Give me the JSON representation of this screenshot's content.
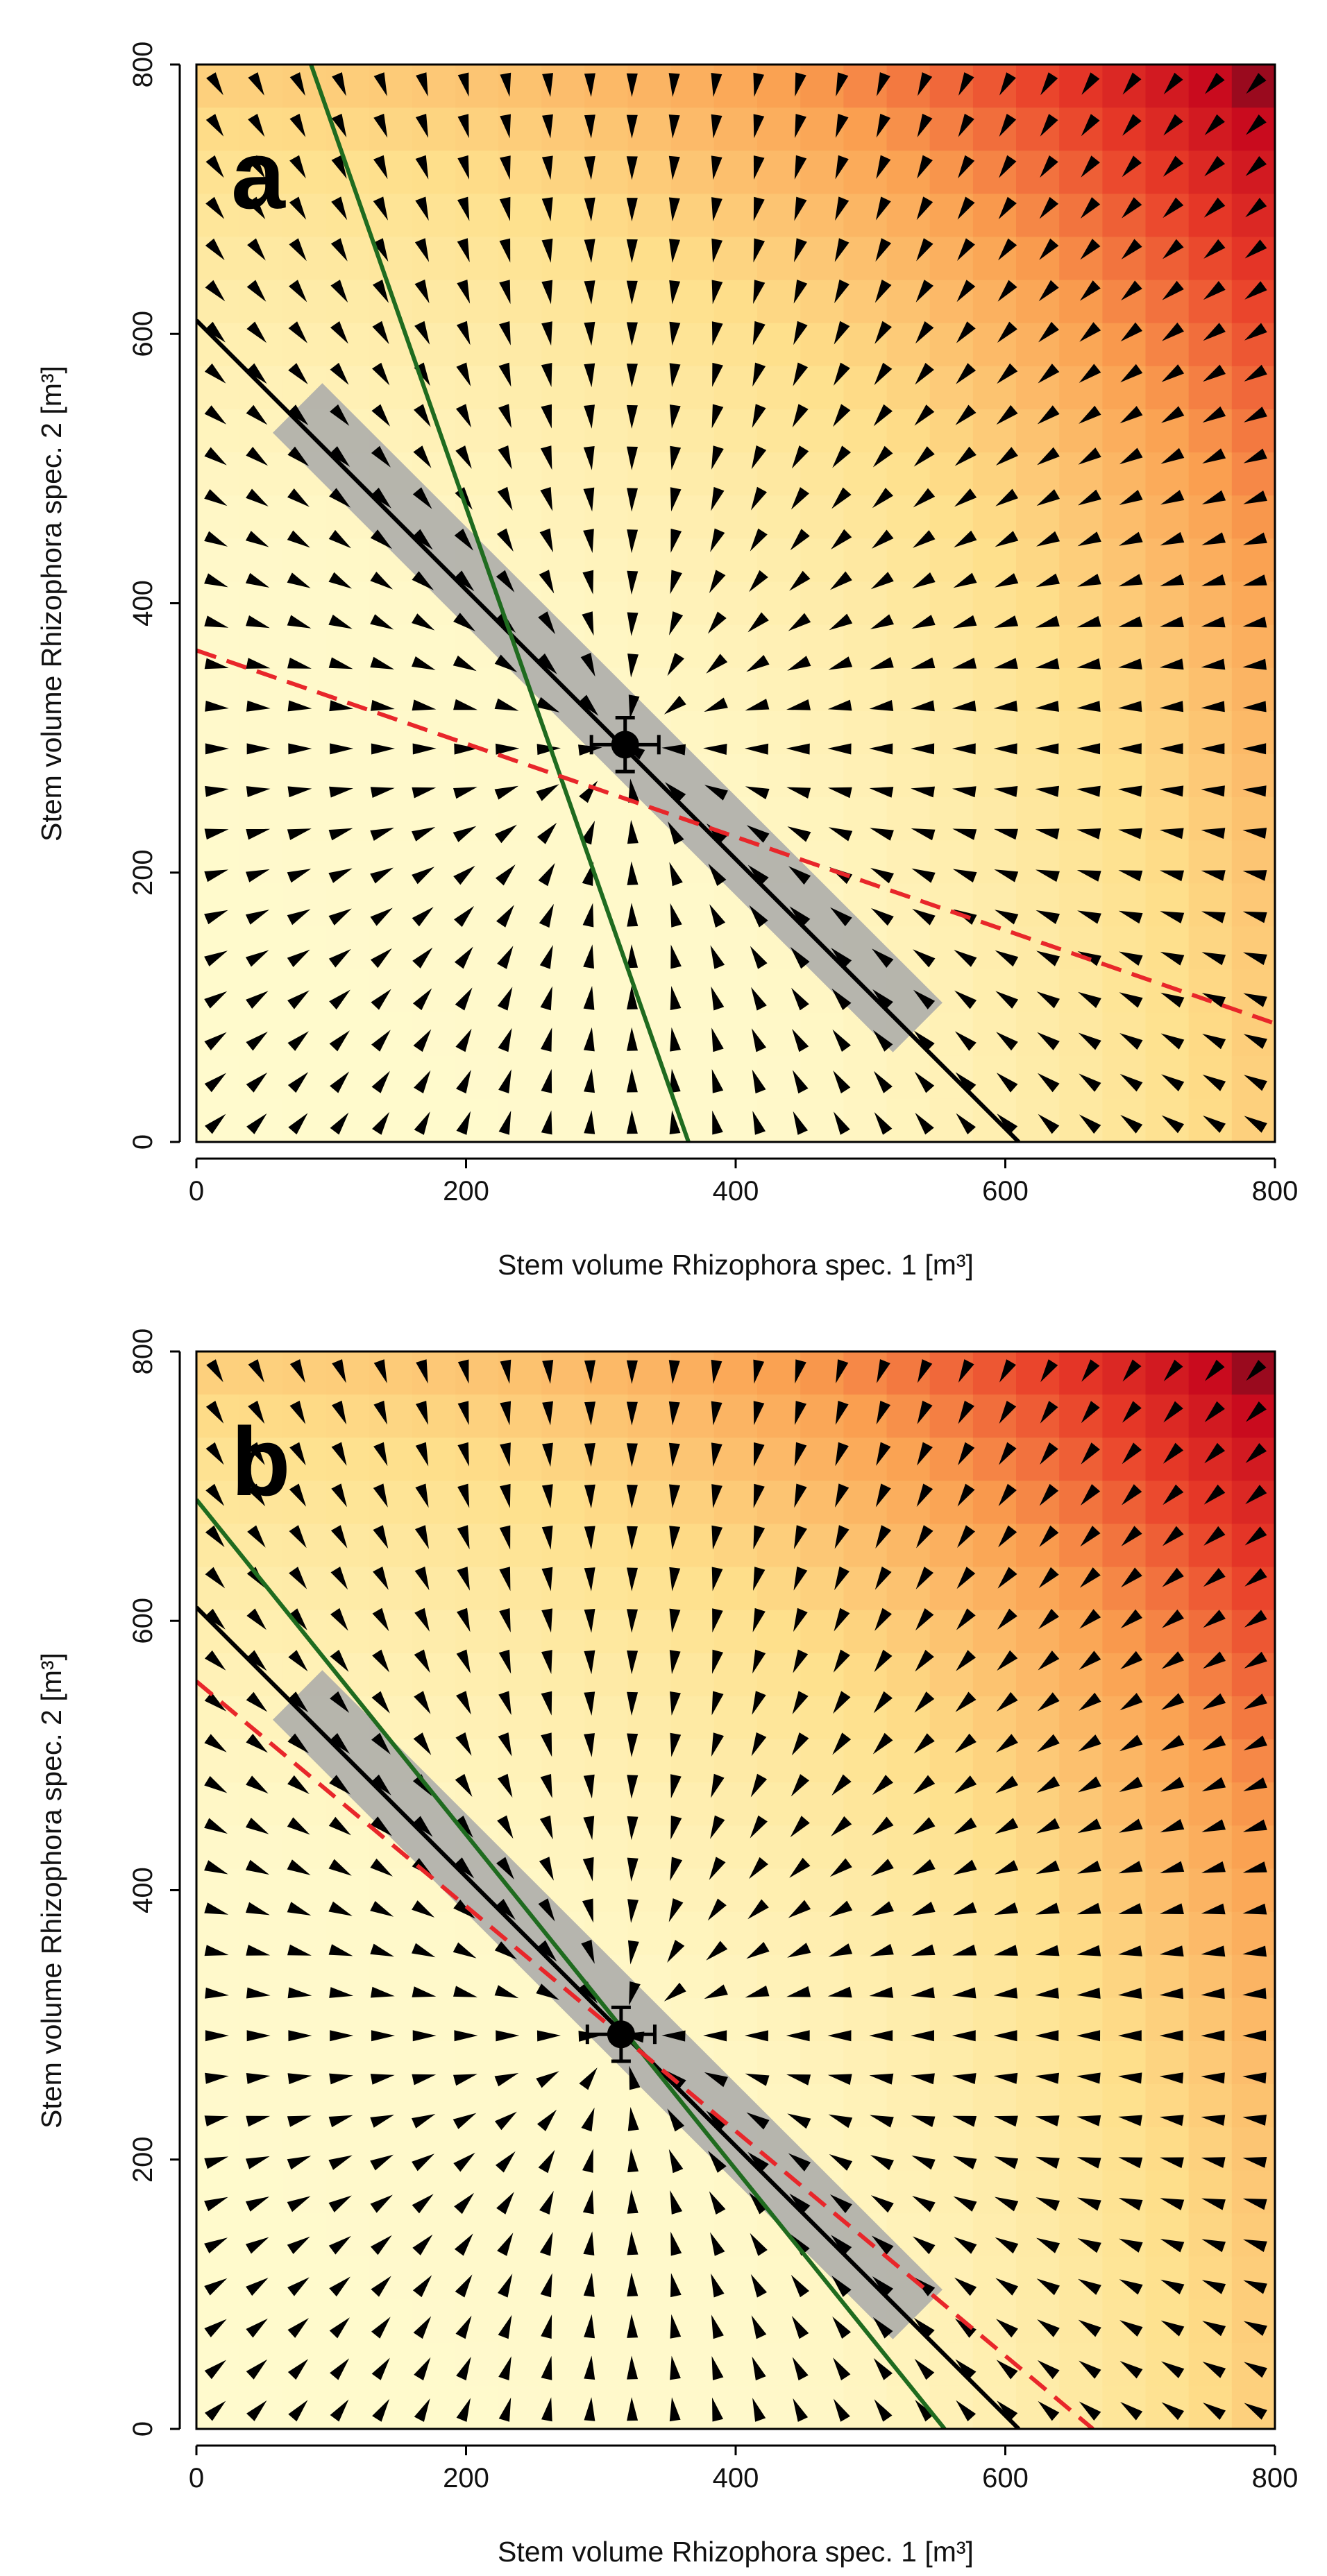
{
  "chart_data": [
    {
      "type": "vector-field",
      "panel_label": "a",
      "xlabel": "Stem volume Rhizophora spec. 1 [m³]",
      "ylabel": "Stem volume Rhizophora spec. 2 [m³]",
      "xlim": [
        0,
        800
      ],
      "ylim": [
        0,
        800
      ],
      "x_ticks": [
        0,
        200,
        400,
        600,
        800
      ],
      "y_ticks": [
        0,
        200,
        400,
        600,
        800
      ],
      "equilibrium_point": {
        "x": 318,
        "y": 295,
        "x_err": 25,
        "y_err": 20
      },
      "lines": [
        {
          "name": "black-nullcline",
          "color": "#000000",
          "style": "solid",
          "from": [
            0,
            610
          ],
          "to": [
            610,
            0
          ]
        },
        {
          "name": "green-nullcline",
          "color": "#1f6b1f",
          "style": "solid",
          "from": [
            85,
            800
          ],
          "to": [
            365,
            0
          ]
        },
        {
          "name": "red-nullcline",
          "color": "#e8262a",
          "style": "dashed",
          "from": [
            0,
            365
          ],
          "to": [
            800,
            88
          ]
        }
      ],
      "scatter_band": {
        "color": "#a9a9a9",
        "from": [
          75,
          545
        ],
        "to": [
          535,
          85
        ],
        "width": 26
      },
      "heatmap": {
        "low_color": "#fffacd",
        "high_color": "#5c0a1e"
      }
    },
    {
      "type": "vector-field",
      "panel_label": "b",
      "xlabel": "Stem volume Rhizophora spec. 1 [m³]",
      "ylabel": "Stem volume Rhizophora spec. 2 [m³]",
      "xlim": [
        0,
        800
      ],
      "ylim": [
        0,
        800
      ],
      "x_ticks": [
        0,
        200,
        400,
        600,
        800
      ],
      "y_ticks": [
        0,
        200,
        400,
        600,
        800
      ],
      "equilibrium_point": {
        "x": 315,
        "y": 293,
        "x_err": 25,
        "y_err": 20
      },
      "lines": [
        {
          "name": "black-nullcline",
          "color": "#000000",
          "style": "solid",
          "from": [
            0,
            610
          ],
          "to": [
            610,
            0
          ]
        },
        {
          "name": "green-nullcline",
          "color": "#1f6b1f",
          "style": "solid",
          "from": [
            0,
            690
          ],
          "to": [
            555,
            0
          ]
        },
        {
          "name": "red-nullcline",
          "color": "#e8262a",
          "style": "dashed",
          "from": [
            0,
            555
          ],
          "to": [
            665,
            0
          ]
        }
      ],
      "scatter_band": {
        "color": "#a9a9a9",
        "from": [
          75,
          545
        ],
        "to": [
          535,
          85
        ],
        "width": 26
      },
      "heatmap": {
        "low_color": "#fffacd",
        "high_color": "#5c0a1e"
      }
    }
  ]
}
